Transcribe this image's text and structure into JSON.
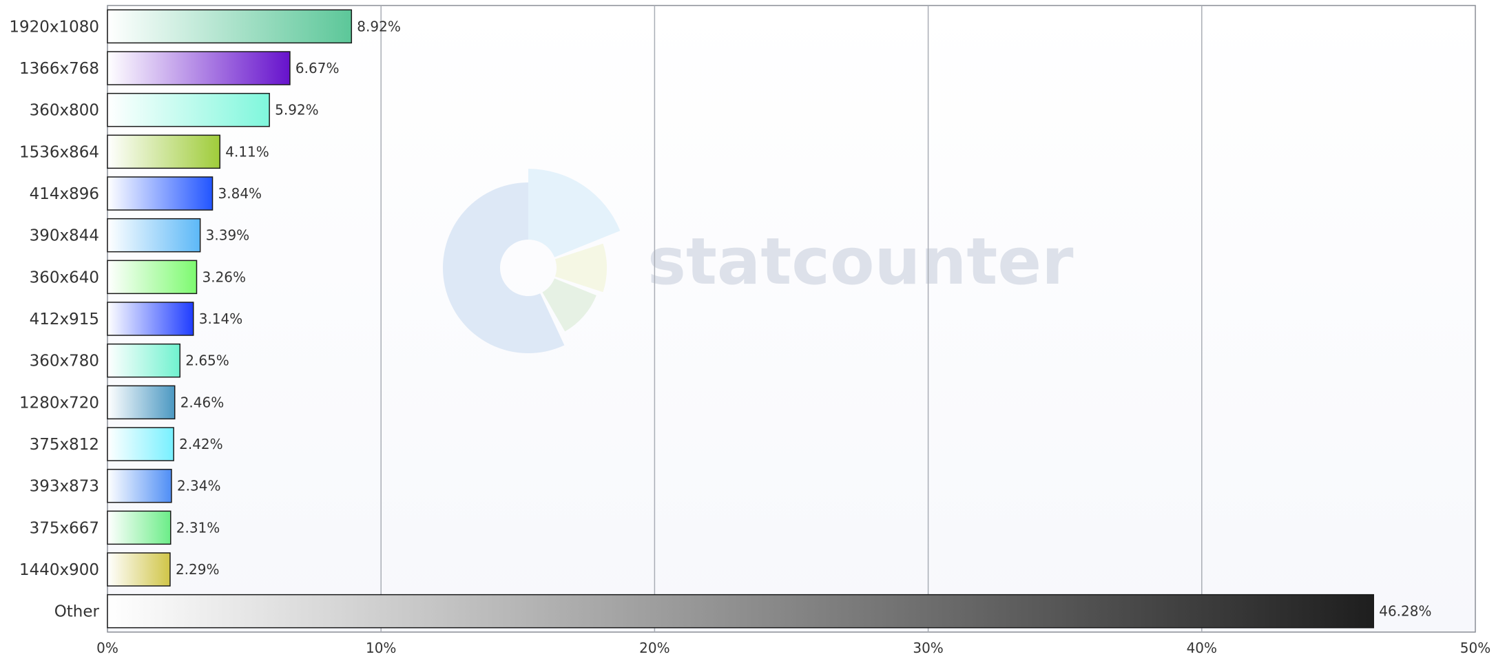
{
  "chart_data": {
    "type": "bar",
    "orientation": "horizontal",
    "categories": [
      "1920x1080",
      "1366x768",
      "360x800",
      "1536x864",
      "414x896",
      "390x844",
      "360x640",
      "412x915",
      "360x780",
      "1280x720",
      "375x812",
      "393x873",
      "375x667",
      "1440x900",
      "Other"
    ],
    "values": [
      8.92,
      6.67,
      5.92,
      4.11,
      3.84,
      3.39,
      3.26,
      3.14,
      2.65,
      2.46,
      2.42,
      2.34,
      2.31,
      2.29,
      46.28
    ],
    "value_labels": [
      "8.92%",
      "6.67%",
      "5.92%",
      "4.11%",
      "3.84%",
      "3.39%",
      "3.26%",
      "3.14%",
      "2.65%",
      "2.46%",
      "2.42%",
      "2.34%",
      "2.31%",
      "2.29%",
      "46.28%"
    ],
    "bar_colors": [
      "#5cc799",
      "#6612cc",
      "#7ff7dc",
      "#9fcc3a",
      "#2255ff",
      "#5cb8f7",
      "#7dfa70",
      "#1f3dff",
      "#70f2cf",
      "#4b98c2",
      "#77f0ff",
      "#4f8ef5",
      "#6ced88",
      "#d0c548",
      "#1e1e1e"
    ],
    "xlim": [
      0,
      50
    ],
    "x_ticks": [
      0,
      10,
      20,
      30,
      40,
      50
    ],
    "x_tick_labels": [
      "0%",
      "10%",
      "20%",
      "30%",
      "40%",
      "50%"
    ],
    "grid": true,
    "title": "",
    "xlabel": "",
    "ylabel": ""
  },
  "watermark": {
    "text": "statcounter"
  },
  "colors": {
    "plot_bg_top": "#ffffff",
    "plot_bg_bottom": "#f7f8fc",
    "gridline": "#a9adb5",
    "axis": "#8a8e96",
    "label_text": "#333333",
    "value_text": "#333333",
    "bar_stroke": "#1a1a1a",
    "watermark_text": "#dde1ea"
  }
}
